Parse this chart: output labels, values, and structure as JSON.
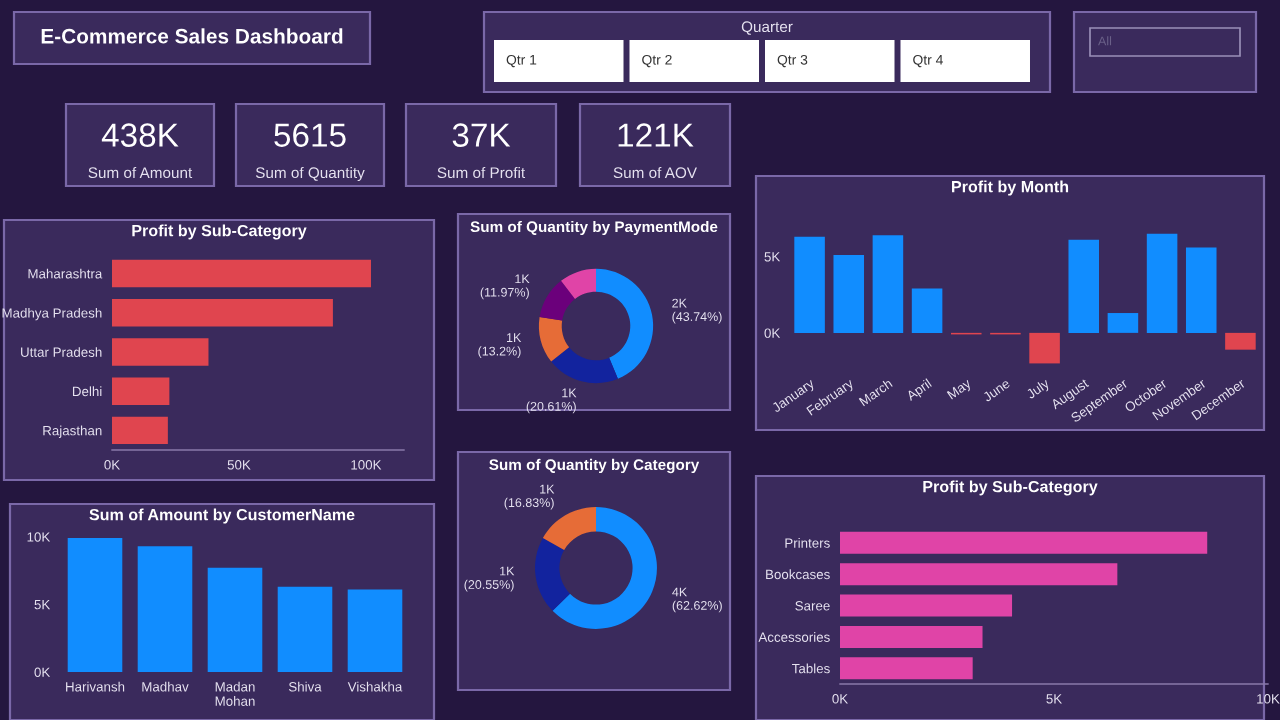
{
  "chart_data": [
    {
      "type": "other",
      "title": "E-Commerce Sales Dashboard"
    },
    {
      "type": "other",
      "title": "Quarter",
      "annotations": [
        "Qtr 1",
        "Qtr 2",
        "Qtr 3",
        "Qtr 4"
      ]
    },
    {
      "type": "other",
      "annotations": [
        "All"
      ]
    },
    {
      "type": "other",
      "title": "Sum of Amount",
      "annotations": [
        "438K"
      ]
    },
    {
      "type": "other",
      "title": "Sum of Quantity",
      "annotations": [
        "5615"
      ]
    },
    {
      "type": "other",
      "title": "Sum of Profit",
      "annotations": [
        "37K"
      ]
    },
    {
      "type": "other",
      "title": "Sum of AOV",
      "annotations": [
        "121K"
      ]
    },
    {
      "type": "bar",
      "orientation": "horizontal",
      "title": "Profit by Sub-Category",
      "categories": [
        "Maharashtra",
        "Madhya Pradesh",
        "Uttar Pradesh",
        "Delhi",
        "Rajasthan"
      ],
      "values": [
        102000,
        87000,
        38000,
        22600,
        22000
      ],
      "colors": [
        "#e0454f",
        "#e0454f",
        "#e0454f",
        "#e0454f",
        "#e0454f"
      ],
      "xlim": [
        0,
        115000
      ],
      "xticks": [
        {
          "value": 0,
          "label": "0K"
        },
        {
          "value": 50000,
          "label": "50K"
        },
        {
          "value": 100000,
          "label": "100K"
        }
      ],
      "grid": false,
      "legend": false
    },
    {
      "type": "donut",
      "title": "Sum of Quantity by PaymentMode",
      "categories": [
        null,
        null,
        null,
        null,
        null
      ],
      "values": [
        43.74,
        20.61,
        13.2,
        11.97,
        10.48
      ],
      "colors": [
        "#118dff",
        "#12239e",
        "#e66c37",
        "#6b007b",
        "#e044a7"
      ],
      "value_labels": [
        "2K (43.74%)",
        "1K (20.61%)",
        "1K (13.2%)",
        "1K (11.97%)",
        null
      ]
    },
    {
      "type": "donut",
      "title": "Sum of Quantity by Category",
      "categories": [
        null,
        null,
        null
      ],
      "values": [
        62.62,
        20.55,
        16.83
      ],
      "colors": [
        "#118dff",
        "#12239e",
        "#e66c37"
      ],
      "value_labels": [
        "4K (62.62%)",
        "1K (20.55%)",
        "1K (16.83%)"
      ]
    },
    {
      "type": "bar",
      "title": "Profit by Month",
      "categories": [
        "January",
        "February",
        "March",
        "April",
        "May",
        "June",
        "July",
        "August",
        "September",
        "October",
        "November",
        "December"
      ],
      "values": [
        6300,
        5100,
        6400,
        2900,
        -100,
        -100,
        -2000,
        6100,
        1300,
        6500,
        5600,
        -1100
      ],
      "colors": [
        "#118dff",
        "#118dff",
        "#118dff",
        "#118dff",
        "#e0454f",
        "#e0454f",
        "#e0454f",
        "#118dff",
        "#118dff",
        "#118dff",
        "#118dff",
        "#e0454f"
      ],
      "ylim": [
        -2300,
        7000
      ],
      "yticks": [
        {
          "value": 0,
          "label": "0K"
        },
        {
          "value": 5000,
          "label": "5K"
        }
      ],
      "grid": false,
      "legend": false
    },
    {
      "type": "bar",
      "title": "Sum of Amount by CustomerName",
      "categories": [
        "Harivansh",
        "Madhav",
        "Madan Mohan",
        "Shiva",
        "Vishakha"
      ],
      "values": [
        9900,
        9300,
        7700,
        6300,
        6100
      ],
      "colors": [
        "#118dff",
        "#118dff",
        "#118dff",
        "#118dff",
        "#118dff"
      ],
      "ylim": [
        0,
        10500
      ],
      "yticks": [
        {
          "value": 0,
          "label": "0K"
        },
        {
          "value": 5000,
          "label": "5K"
        },
        {
          "value": 10000,
          "label": "10K"
        }
      ],
      "grid": false,
      "legend": false
    },
    {
      "type": "bar",
      "orientation": "horizontal",
      "title": "Profit by Sub-Category",
      "categories": [
        "Printers",
        "Bookcases",
        "Saree",
        "Accessories",
        "Tables"
      ],
      "values": [
        8580,
        6480,
        4020,
        3330,
        3100
      ],
      "colors": [
        "#e044a7",
        "#e044a7",
        "#e044a7",
        "#e044a7",
        "#e044a7"
      ],
      "xlim": [
        0,
        10000
      ],
      "xticks": [
        {
          "value": 0,
          "label": "0K"
        },
        {
          "value": 5000,
          "label": "5K"
        },
        {
          "value": 10000,
          "label": "10K"
        }
      ],
      "grid": false,
      "legend": false
    }
  ]
}
